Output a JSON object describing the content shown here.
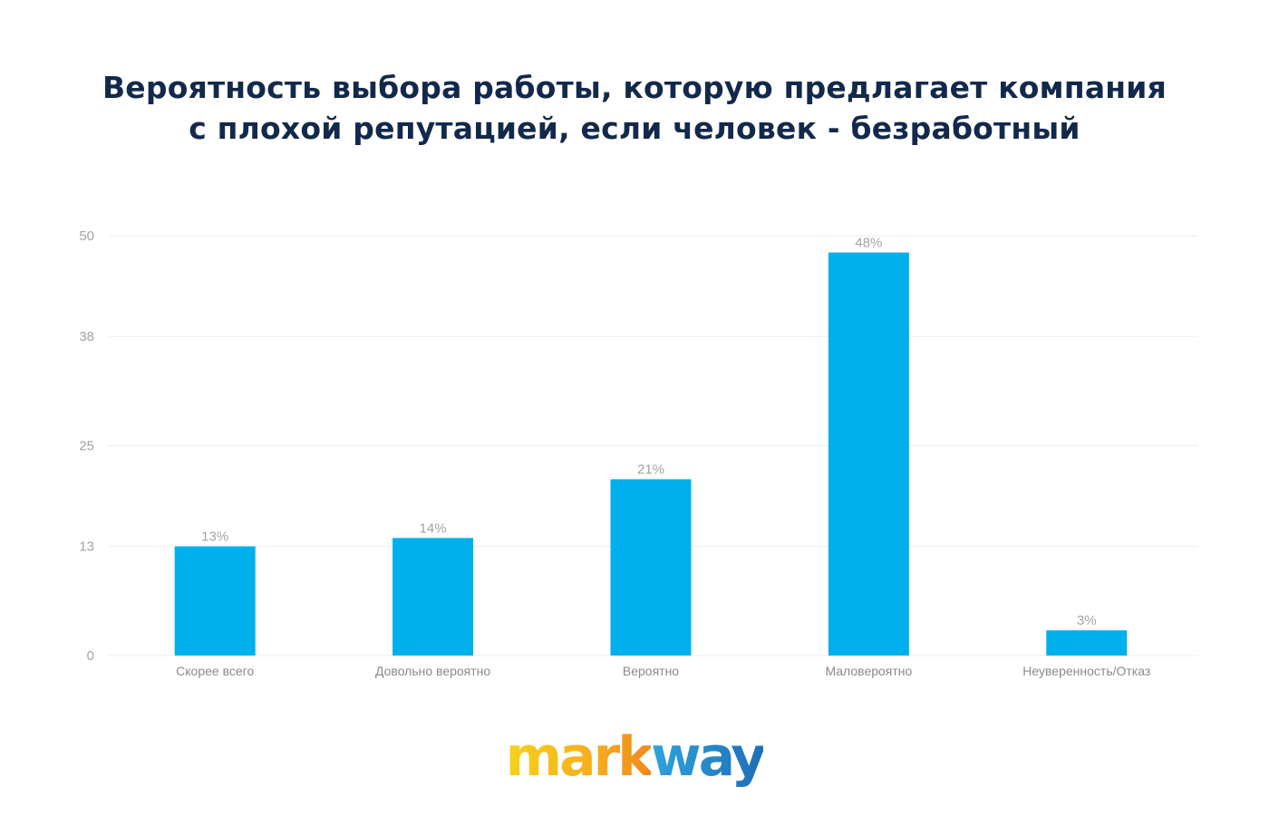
{
  "title_lines": [
    "Вероятность выбора работы, которую предлагает компания",
    "с плохой репутацией, если человек - безработный"
  ],
  "logo": {
    "part1": "mark",
    "part2": "way"
  },
  "colors": {
    "bar": "#00b0ea",
    "title": "#13294b",
    "label": "#a3a3a3",
    "grid": "#ececec"
  },
  "chart_data": {
    "type": "bar",
    "categories": [
      "Скорее всего",
      "Довольно вероятно",
      "Вероятно",
      "Маловероятно",
      "Неуверенность/Отказ"
    ],
    "values": [
      13,
      14,
      21,
      48,
      3
    ],
    "data_labels": [
      "13%",
      "14%",
      "21%",
      "48%",
      "3%"
    ],
    "yticks": [
      0,
      13,
      25,
      38,
      50
    ],
    "ylim": [
      0,
      50
    ],
    "grid": true,
    "legend": "none"
  }
}
